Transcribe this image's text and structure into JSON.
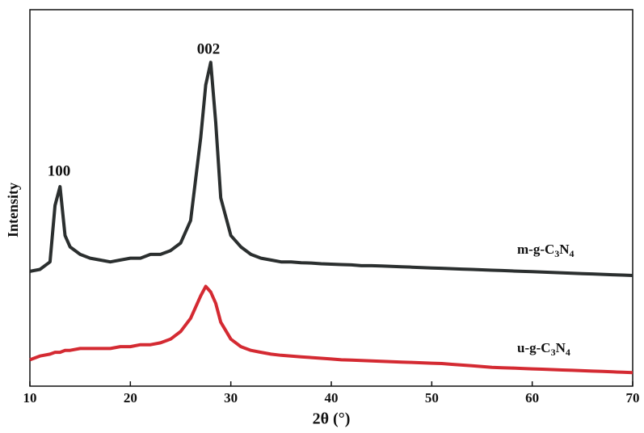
{
  "chart_data": {
    "type": "line",
    "xlabel": "2θ (°)",
    "ylabel": "Intensity",
    "annotations": [
      "100",
      "002"
    ],
    "x": [
      10,
      11,
      12,
      12.5,
      13,
      13.5,
      14,
      15,
      16,
      17,
      18,
      19,
      20,
      21,
      22,
      23,
      24,
      25,
      26,
      27,
      27.5,
      28,
      28.5,
      29,
      30,
      31,
      32,
      33,
      34,
      35,
      36,
      37,
      38,
      39,
      40,
      41,
      42,
      43,
      44,
      45,
      46,
      47,
      48,
      49,
      50,
      51,
      52,
      53,
      54,
      55,
      56,
      57,
      58,
      59,
      60,
      61,
      62,
      63,
      64,
      65,
      66,
      67,
      68,
      69,
      70
    ],
    "series": [
      {
        "name": "m-g-C3N4",
        "color": "#2b2f2f",
        "values": [
          30.5,
          31,
          33,
          48,
          53,
          40,
          37,
          35,
          34,
          33.5,
          33,
          33.5,
          34,
          34,
          35,
          35,
          36,
          38,
          44,
          66,
          80,
          86,
          70,
          50,
          40,
          37,
          35,
          34,
          33.5,
          33,
          33,
          32.8,
          32.7,
          32.5,
          32.4,
          32.3,
          32.2,
          32,
          32,
          31.9,
          31.8,
          31.7,
          31.6,
          31.5,
          31.4,
          31.3,
          31.2,
          31.1,
          31,
          30.9,
          30.8,
          30.7,
          30.6,
          30.5,
          30.4,
          30.3,
          30.2,
          30.1,
          30,
          29.9,
          29.8,
          29.7,
          29.6,
          29.5,
          29.4
        ]
      },
      {
        "name": "u-g-C3N4",
        "color": "#d42a32",
        "values": [
          7,
          8,
          8.5,
          9,
          9,
          9.5,
          9.5,
          10,
          10,
          10,
          10,
          10.5,
          10.5,
          11,
          11,
          11.5,
          12.5,
          14.5,
          18,
          24,
          26.5,
          25,
          22,
          17,
          12.5,
          10.5,
          9.5,
          9,
          8.5,
          8.2,
          8,
          7.8,
          7.6,
          7.4,
          7.2,
          7,
          6.9,
          6.8,
          6.7,
          6.6,
          6.5,
          6.4,
          6.3,
          6.2,
          6.1,
          6,
          5.8,
          5.6,
          5.4,
          5.2,
          5,
          4.9,
          4.8,
          4.7,
          4.6,
          4.5,
          4.4,
          4.3,
          4.2,
          4.1,
          4,
          3.9,
          3.8,
          3.7,
          3.6
        ]
      }
    ],
    "xlim": [
      10,
      70
    ],
    "xticks": [
      10,
      20,
      30,
      40,
      50,
      60,
      70
    ],
    "ylim": [
      0,
      100
    ]
  }
}
